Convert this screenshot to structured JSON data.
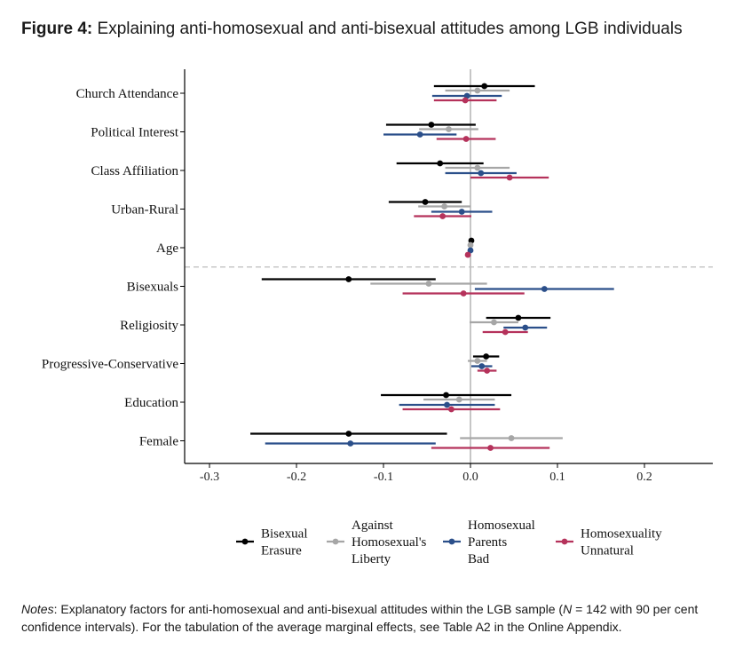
{
  "header": {
    "figure_label": "Figure 4:",
    "title": "Explaining anti-homosexual and anti-bisexual attitudes among LGB individuals"
  },
  "notes": {
    "label": "Notes",
    "text_1": ": Explanatory factors for anti-homosexual and anti-bisexual attitudes within the LGB sample (",
    "n_label": "N",
    "text_2": " = 142 with 90 per cent confidence intervals). For the tabulation of the average marginal effects, see Table A2 in the Online Appendix."
  },
  "chart_data": {
    "type": "coefficient-plot",
    "orientation": "horizontal",
    "xlim": [
      -0.33,
      0.28
    ],
    "x_ticks": [
      -0.3,
      -0.2,
      -0.1,
      0.0,
      0.1,
      0.2
    ],
    "x_tick_labels": [
      "-0.3",
      "-0.2",
      "-0.1",
      "0.0",
      "0.1",
      "0.2"
    ],
    "reference_line_x": 0,
    "separator_after_category": "Age",
    "categories": [
      "Church Attendance",
      "Political Interest",
      "Class Affiliation",
      "Urban-Rural",
      "Age",
      "Bisexuals",
      "Religiosity",
      "Progressive-Conservative",
      "Education",
      "Female"
    ],
    "series": [
      {
        "name": "Bisexual Erasure",
        "legend_lines": [
          "Bisexual",
          "Erasure"
        ],
        "color": "#000000",
        "estimates": [
          0.016,
          -0.045,
          -0.035,
          -0.052,
          0.001,
          -0.14,
          0.055,
          0.018,
          -0.028,
          -0.14
        ],
        "ci_low": [
          -0.042,
          -0.097,
          -0.085,
          -0.094,
          -0.001,
          -0.24,
          0.018,
          0.003,
          -0.103,
          -0.253
        ],
        "ci_high": [
          0.074,
          0.006,
          0.015,
          -0.01,
          0.003,
          -0.04,
          0.092,
          0.033,
          0.047,
          -0.027
        ]
      },
      {
        "name": "Against Homosexual's Liberty",
        "legend_lines": [
          "Against",
          "Homosexual's",
          "Liberty"
        ],
        "color": "#a6a6a6",
        "estimates": [
          0.008,
          -0.025,
          0.008,
          -0.03,
          0.0,
          -0.048,
          0.027,
          0.008,
          -0.013,
          0.047
        ],
        "ci_low": [
          -0.029,
          -0.059,
          -0.029,
          -0.06,
          -0.002,
          -0.115,
          -0.001,
          -0.003,
          -0.054,
          -0.012
        ],
        "ci_high": [
          0.045,
          0.009,
          0.045,
          0.0,
          0.002,
          0.019,
          0.055,
          0.019,
          0.028,
          0.106
        ]
      },
      {
        "name": "Homosexual Parents Bad",
        "legend_lines": [
          "Homosexual",
          "Parents",
          "Bad"
        ],
        "color": "#2b4f8a",
        "estimates": [
          -0.004,
          -0.058,
          0.012,
          -0.01,
          0.0,
          0.085,
          0.063,
          0.013,
          -0.027,
          -0.138
        ],
        "ci_low": [
          -0.044,
          -0.1,
          -0.029,
          -0.045,
          -0.002,
          0.005,
          0.038,
          0.001,
          -0.082,
          -0.236
        ],
        "ci_high": [
          0.036,
          -0.016,
          0.053,
          0.025,
          0.002,
          0.165,
          0.088,
          0.025,
          0.028,
          -0.04
        ]
      },
      {
        "name": "Homosexuality Unnatural",
        "legend_lines": [
          "Homosexuality",
          "Unnatural"
        ],
        "color": "#b5325b",
        "estimates": [
          -0.006,
          -0.005,
          0.045,
          -0.032,
          -0.003,
          -0.008,
          0.04,
          0.019,
          -0.022,
          0.023
        ],
        "ci_low": [
          -0.042,
          -0.039,
          0.0,
          -0.065,
          -0.005,
          -0.078,
          0.014,
          0.008,
          -0.078,
          -0.045
        ],
        "ci_high": [
          0.03,
          0.029,
          0.09,
          0.001,
          -0.001,
          0.062,
          0.066,
          0.03,
          0.034,
          0.091
        ]
      }
    ]
  }
}
